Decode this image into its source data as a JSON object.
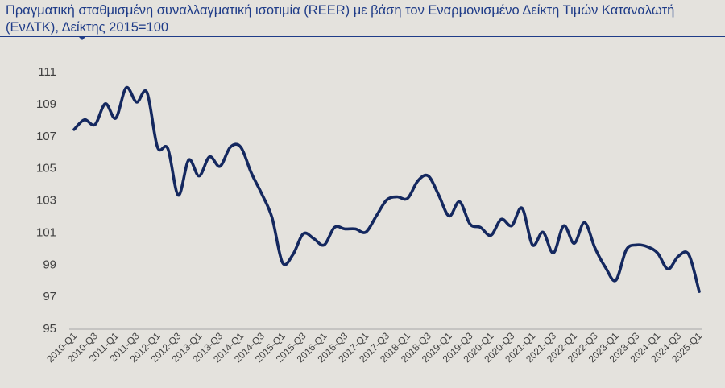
{
  "title": "Πραγματική σταθμισμένη συναλλαγματική ισοτιμία (REER) με βάση τον Εναρμονισμένο Δείκτη Τιμών Καταναλωτή (ΕνΔΤΚ), Δείκτης 2015=100",
  "chart_data": {
    "type": "line",
    "title": "Πραγματική σταθμισμένη συναλλαγματική ισοτιμία (REER) με βάση τον Εναρμονισμένο Δείκτη Τιμών Καταναλωτή (ΕνΔΤΚ), Δείκτης 2015=100",
    "xlabel": "",
    "ylabel": "",
    "ylim": [
      95,
      111
    ],
    "yticks": [
      95,
      97,
      99,
      101,
      103,
      105,
      107,
      109,
      111
    ],
    "grid": false,
    "legend": "none",
    "line_color": "#14285f",
    "x_tick_labels": [
      "2010-Q1",
      "2010-Q3",
      "2011-Q1",
      "2011-Q3",
      "2012-Q1",
      "2012-Q3",
      "2013-Q1",
      "2013-Q3",
      "2014-Q1",
      "2014-Q3",
      "2015-Q1",
      "2015-Q3",
      "2016-Q1",
      "2016-Q3",
      "2017-Q1",
      "2017-Q3",
      "2018-Q1",
      "2018-Q3",
      "2019-Q1",
      "2019-Q3",
      "2020-Q1",
      "2020-Q3",
      "2021-Q1",
      "2021-Q3",
      "2022-Q1",
      "2022-Q3",
      "2023-Q1",
      "2023-Q3",
      "2024-Q1",
      "2024-Q3",
      "2025-Q1"
    ],
    "x": [
      "2010-Q1",
      "2010-Q2",
      "2010-Q3",
      "2010-Q4",
      "2011-Q1",
      "2011-Q2",
      "2011-Q3",
      "2011-Q4",
      "2012-Q1",
      "2012-Q2",
      "2012-Q3",
      "2012-Q4",
      "2013-Q1",
      "2013-Q2",
      "2013-Q3",
      "2013-Q4",
      "2014-Q1",
      "2014-Q2",
      "2014-Q3",
      "2014-Q4",
      "2015-Q1",
      "2015-Q2",
      "2015-Q3",
      "2015-Q4",
      "2016-Q1",
      "2016-Q2",
      "2016-Q3",
      "2016-Q4",
      "2017-Q1",
      "2017-Q2",
      "2017-Q3",
      "2017-Q4",
      "2018-Q1",
      "2018-Q2",
      "2018-Q3",
      "2018-Q4",
      "2019-Q1",
      "2019-Q2",
      "2019-Q3",
      "2019-Q4",
      "2020-Q1",
      "2020-Q2",
      "2020-Q3",
      "2020-Q4",
      "2021-Q1",
      "2021-Q2",
      "2021-Q3",
      "2021-Q4",
      "2022-Q1",
      "2022-Q2",
      "2022-Q3",
      "2022-Q4",
      "2023-Q1",
      "2023-Q2",
      "2023-Q3",
      "2023-Q4",
      "2024-Q1",
      "2024-Q2",
      "2024-Q3",
      "2024-Q4",
      "2025-Q1"
    ],
    "series": [
      {
        "values": [
          107.4,
          108.0,
          107.7,
          109.0,
          108.1,
          110.0,
          109.1,
          109.7,
          106.3,
          106.2,
          103.3,
          105.5,
          104.5,
          105.7,
          105.1,
          106.3,
          106.3,
          104.7,
          103.4,
          101.9,
          99.1,
          99.6,
          100.9,
          100.6,
          100.2,
          101.3,
          101.2,
          101.2,
          101.0,
          102.0,
          103.0,
          103.2,
          103.1,
          104.2,
          104.5,
          103.3,
          102.0,
          102.9,
          101.5,
          101.3,
          100.8,
          101.8,
          101.4,
          102.5,
          100.2,
          101.0,
          99.7,
          101.4,
          100.3,
          101.6,
          100.0,
          98.8,
          98.0,
          99.9,
          100.2,
          100.1,
          99.7,
          98.7,
          99.5,
          99.6,
          97.3
        ]
      }
    ]
  }
}
